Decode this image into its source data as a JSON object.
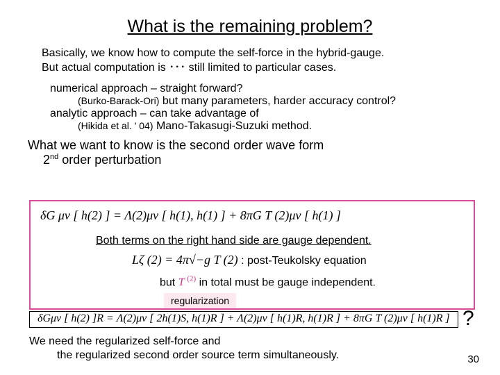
{
  "title": "What is the remaining problem?",
  "intro_l1": "Basically, we know how to compute the self-force in the hybrid-gauge.",
  "intro_l2": "But actual computation is ･･･ still limited to particular cases.",
  "approach": {
    "numerical_label": "numerical approach – straight forward?",
    "numerical_cite": "(Burko-Barack-Ori)",
    "numerical_rest": "  but many parameters, harder accuracy control?",
    "analytic_label": "analytic approach    – can take advantage of",
    "analytic_cite": "(Hikida et al. ' 04)",
    "analytic_rest": "      Mano-Takasugi-Suzuki method."
  },
  "what_we_want": "What we want to know is the second order wave form",
  "second_order_label": "2",
  "second_order_suffix": " order perturbation",
  "eq1": "δG μν [ h(2) ] = Λ(2)μν [ h(1), h(1) ] + 8πG T (2)μν [ h(1) ]",
  "both_terms": "Both terms on the right hand side are gauge dependent.",
  "lzeta_eq": "Lζ (2) = 4π√−g T (2)",
  "post_teuk": " : post-Teukolsky equation",
  "but_prefix": "but ",
  "but_T": "T ",
  "but_T_sup": "(2)",
  "but_suffix": " in total must be gauge independent.",
  "regularization": "regularization",
  "eq2": "δGμν [ h(2) ]R = Λ(2)μν [ 2h(1)S, h(1)R ] + Λ(2)μν [ h(1)R, h(1)R ] + 8πG T (2)μν [ h(1)R ]",
  "qmark": "?",
  "need_l1": "We need the regularized self-force and",
  "need_l2": "the regularized second order source term simultaneously.",
  "pagenum": "30",
  "colors": {
    "border_pink": "#d94c9a",
    "reg_bg": "#fce9f0",
    "text": "#000000"
  }
}
